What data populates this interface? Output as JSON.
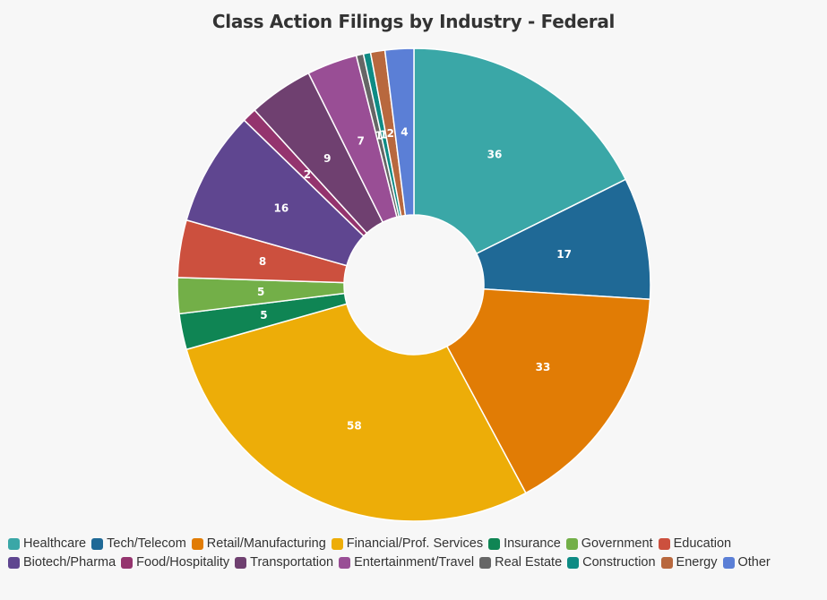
{
  "chart_data": {
    "type": "pie",
    "title": "Class Action Filings by Industry - Federal",
    "donut": true,
    "legend_position": "bottom",
    "categories": [
      "Healthcare",
      "Tech/Telecom",
      "Retail/Manufacturing",
      "Financial/Prof. Services",
      "Insurance",
      "Government",
      "Education",
      "Biotech/Pharma",
      "Food/Hospitality",
      "Transportation",
      "Entertainment/Travel",
      "Real Estate",
      "Construction",
      "Energy",
      "Other"
    ],
    "values": [
      36,
      17,
      33,
      58,
      5,
      5,
      8,
      16,
      2,
      9,
      7,
      1,
      1,
      2,
      4
    ],
    "colors": [
      "#3aa7a7",
      "#1f6996",
      "#e17c05",
      "#edad08",
      "#0f8554",
      "#73af48",
      "#cc503e",
      "#5f4690",
      "#94346e",
      "#6f4070",
      "#994e95",
      "#666666",
      "#0e8b84",
      "#b8683e",
      "#5b7fd6"
    ]
  }
}
